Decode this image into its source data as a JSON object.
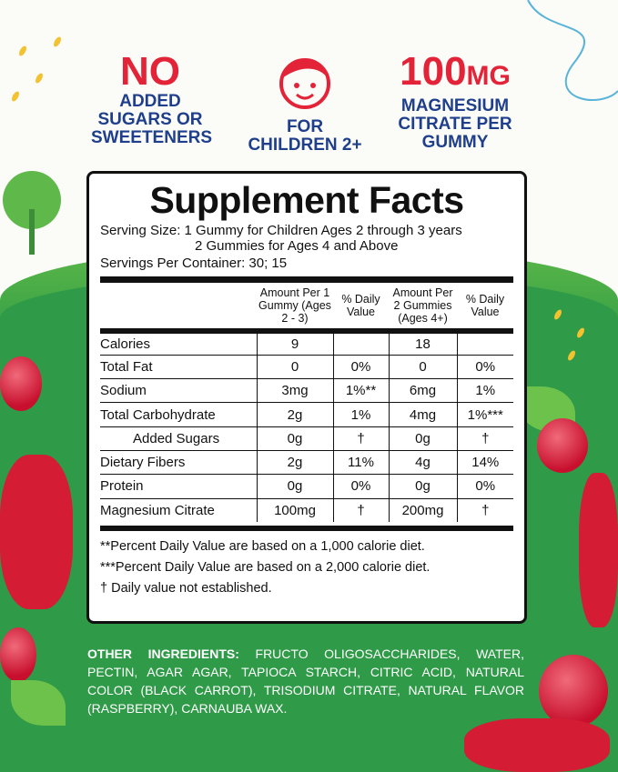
{
  "claims": [
    {
      "headline": "NO",
      "text": [
        "ADDED",
        "SUGARS OR",
        "SWEETENERS"
      ]
    },
    {
      "icon": "child-face-icon",
      "text": [
        "FOR",
        "CHILDREN 2+"
      ]
    },
    {
      "headline": "100",
      "unit": "MG",
      "text": [
        "MAGNESIUM",
        "CITRATE PER",
        "GUMMY"
      ]
    }
  ],
  "facts": {
    "title": "Supplement Facts",
    "serving_size": "Serving Size: 1 Gummy for Children Ages 2 through 3 years",
    "serving_size_2": "2 Gummies for Ages 4 and Above",
    "servings_per_container": "Servings Per Container: 30; 15",
    "headers": [
      "Amount Per 1 Gummy (Ages 2 - 3)",
      "% Daily Value",
      "Amount Per 2 Gummies (Ages 4+)",
      "% Daily Value"
    ],
    "rows": [
      [
        "Calories",
        "9",
        "",
        "18",
        ""
      ],
      [
        "Total Fat",
        "0",
        "0%",
        "0",
        "0%"
      ],
      [
        "Sodium",
        "3mg",
        "1%**",
        "6mg",
        "1%"
      ],
      [
        "Total Carbohydrate",
        "2g",
        "1%",
        "4mg",
        "1%***"
      ],
      [
        "Added Sugars",
        "0g",
        "†",
        "0g",
        "†"
      ],
      [
        "Dietary Fibers",
        "2g",
        "11%",
        "4g",
        "14%"
      ],
      [
        "Protein",
        "0g",
        "0%",
        "0g",
        "0%"
      ],
      [
        "Magnesium Citrate",
        "100mg",
        "†",
        "200mg",
        "†"
      ]
    ],
    "footnotes": [
      "**Percent Daily Value are based on a 1,000 calorie diet.",
      "***Percent Daily Value  are based on a 2,000 calorie diet.",
      "† Daily value not established."
    ]
  },
  "ingredients": {
    "label": "OTHER INGREDIENTS:",
    "text": "FRUCTO OLIGOSACCHARIDES, WATER, PECTIN, AGAR AGAR, TAPIOCA STARCH, CITRIC ACID, NATURAL COLOR (BLACK CARROT), TRISODIUM CITRATE, NATURAL FLAVOR (RASPBERRY), CARNAUBA WAX."
  },
  "colors": {
    "green": "#2f9a47",
    "red": "#e32337",
    "blue": "#1f3f8c"
  }
}
